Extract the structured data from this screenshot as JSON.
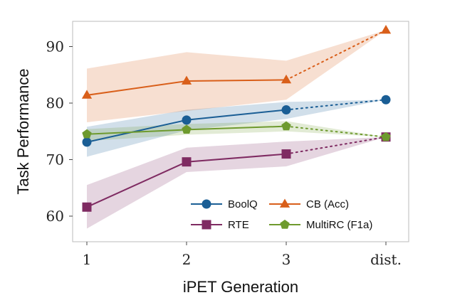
{
  "chart_data": {
    "type": "line",
    "xlabel": "iPET Generation",
    "ylabel": "Task Performance",
    "categories": [
      "1",
      "2",
      "3",
      "dist."
    ],
    "ylim": [
      55,
      95
    ],
    "yticks": [
      60,
      70,
      80,
      90
    ],
    "grid": false,
    "legend_placement": "bottom-right",
    "series": [
      {
        "name": "BoolQ",
        "color": "#1a5e95",
        "marker": "circle",
        "values": [
          73.1,
          77.0,
          78.8,
          80.6
        ],
        "lower": [
          70.5,
          75.2,
          77.2,
          80.6
        ],
        "upper": [
          75.8,
          78.8,
          80.2,
          80.6
        ]
      },
      {
        "name": "CB (Acc)",
        "color": "#d95f1a",
        "marker": "triangle",
        "values": [
          81.4,
          83.9,
          84.1,
          92.9
        ],
        "lower": [
          76.6,
          78.6,
          80.6,
          92.9
        ],
        "upper": [
          86.1,
          89.0,
          87.5,
          92.9
        ]
      },
      {
        "name": "RTE",
        "color": "#7f2b62",
        "marker": "square",
        "values": [
          61.6,
          69.6,
          71.0,
          74.0
        ],
        "lower": [
          57.8,
          67.8,
          68.8,
          74.0
        ],
        "upper": [
          65.5,
          72.1,
          73.2,
          74.0
        ]
      },
      {
        "name": "MultiRC (F1a)",
        "color": "#6e9a2e",
        "marker": "pentagon",
        "values": [
          74.5,
          75.3,
          75.9,
          74.0
        ],
        "lower": [
          73.3,
          74.4,
          75.0,
          74.0
        ],
        "upper": [
          75.4,
          76.3,
          76.8,
          74.0
        ]
      }
    ]
  }
}
